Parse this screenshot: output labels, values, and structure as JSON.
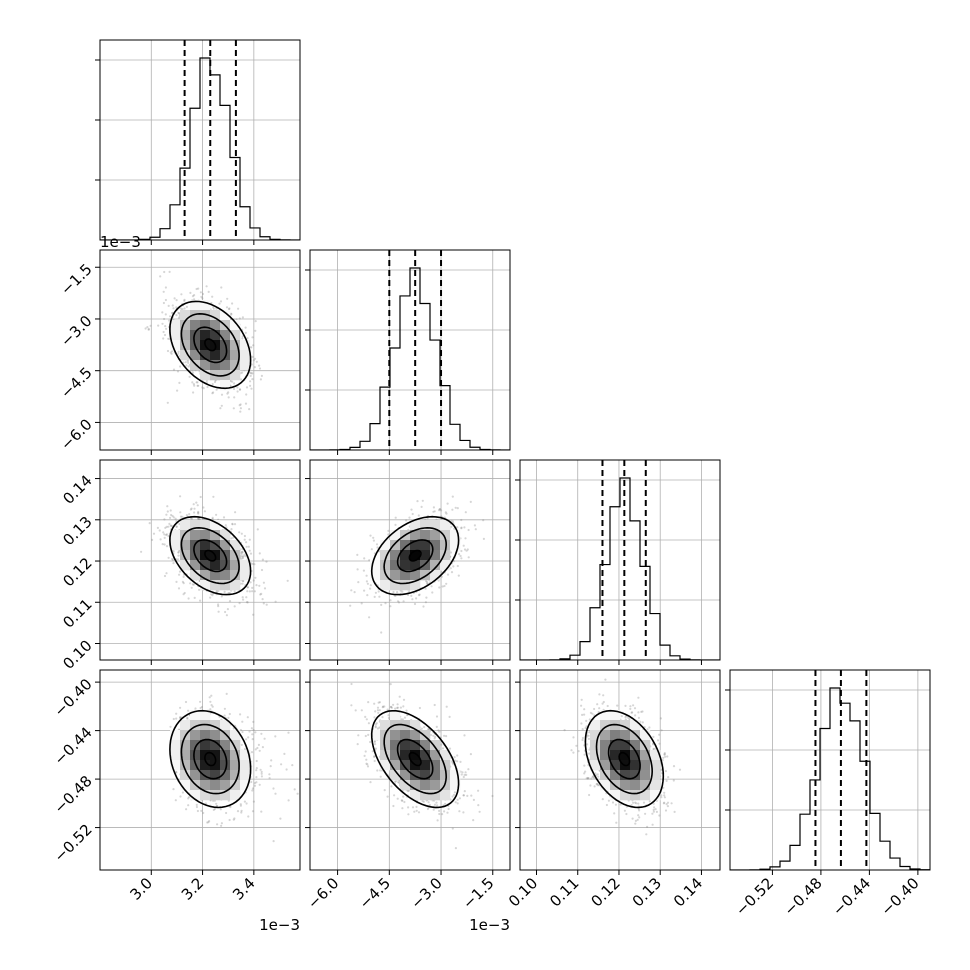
{
  "chart_data": {
    "type": "corner",
    "title": "",
    "variables": [
      {
        "range": [
          0.0028,
          0.00358
        ],
        "ticks": [
          3.0,
          3.2,
          3.4
        ],
        "tick_labels": [
          "3.0",
          "3.2",
          "3.4"
        ],
        "scale_label": "1e−3",
        "quantiles": [
          0.00313,
          0.00323,
          0.00333
        ],
        "mean": 0.00323,
        "sd": 7.5e-05
      },
      {
        "range": [
          -0.0068,
          -0.001
        ],
        "ticks": [
          -6.0,
          -4.5,
          -3.0,
          -1.5
        ],
        "tick_labels": [
          "−6.0",
          "−4.5",
          "−3.0",
          "−1.5"
        ],
        "scale_label": "1e−3",
        "quantiles": [
          -0.0045,
          -0.00375,
          -0.003
        ],
        "mean": -0.00375,
        "sd": 0.0006
      },
      {
        "range": [
          0.096,
          0.1445
        ],
        "ticks": [
          0.1,
          0.11,
          0.12,
          0.13,
          0.14
        ],
        "tick_labels": [
          "0.10",
          "0.11",
          "0.12",
          "0.13",
          "0.14"
        ],
        "scale_label": "",
        "quantiles": [
          0.116,
          0.1213,
          0.1265
        ],
        "mean": 0.1213,
        "sd": 0.0045
      },
      {
        "range": [
          -0.555,
          -0.39
        ],
        "ticks": [
          -0.52,
          -0.48,
          -0.44,
          -0.4
        ],
        "tick_labels": [
          "−0.52",
          "−0.48",
          "−0.44",
          "−0.40"
        ],
        "scale_label": "",
        "quantiles": [
          -0.4845,
          -0.4635,
          -0.4425
        ],
        "mean": -0.4635,
        "sd": 0.019
      }
    ],
    "correlations": [
      [
        1.0,
        -0.35,
        -0.4,
        -0.2
      ],
      [
        -0.35,
        1.0,
        0.4,
        -0.5
      ],
      [
        -0.4,
        0.4,
        1.0,
        -0.35
      ],
      [
        -0.2,
        -0.5,
        -0.35,
        1.0
      ]
    ],
    "histogram_bins": 20,
    "hist_yticks": 3,
    "grid": true,
    "legend": "none"
  }
}
